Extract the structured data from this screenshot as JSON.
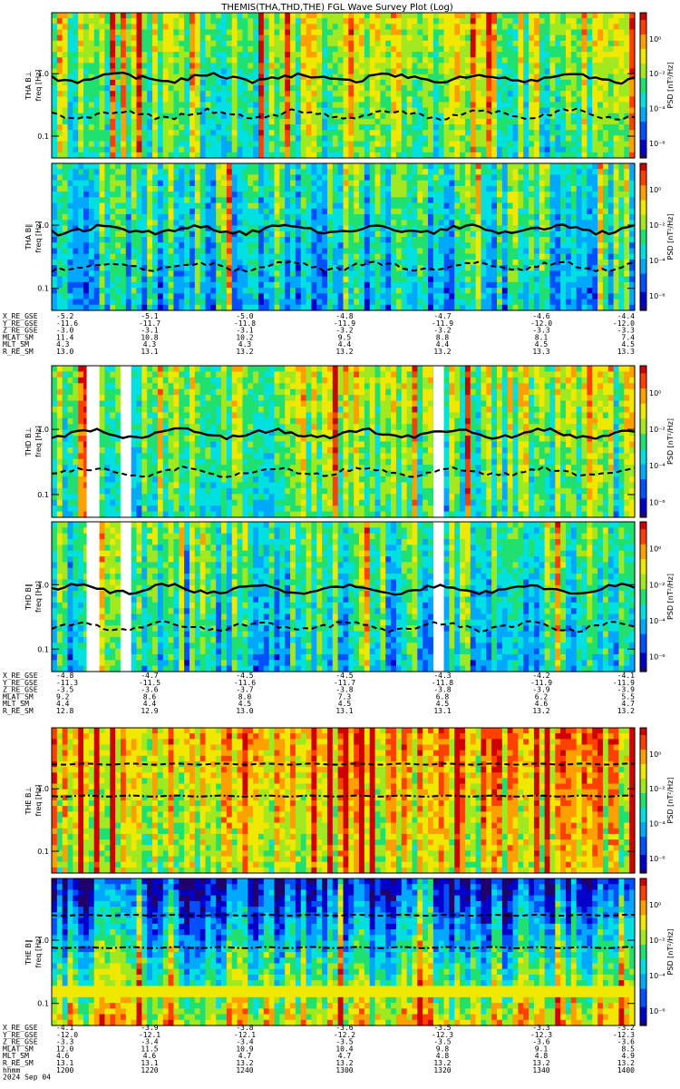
{
  "title": "THEMIS(THA,THD,THE) FGL Wave Survey Plot (Log)",
  "colors": {
    "colormap": [
      "#20006a",
      "#0000c8",
      "#0050ff",
      "#00a8ff",
      "#00e0e0",
      "#20e070",
      "#a0e820",
      "#f0e800",
      "#ffa000",
      "#ff4000",
      "#d00000"
    ]
  },
  "chart_data": {
    "type": "heatmap",
    "panels": [
      {
        "ylabel": "THA B⊥",
        "yunit": "freq [Hz]",
        "clabel": "PSD [nT²/Hz]",
        "yticks": [
          "1.0",
          "0.1"
        ],
        "cticks": [
          "10⁰",
          "10⁻²",
          "10⁻⁴",
          "10⁻⁶"
        ],
        "curves": [
          "solid",
          "dashed"
        ],
        "seed": 11,
        "base": 0.55,
        "gaps": []
      },
      {
        "ylabel": "THA B∥",
        "yunit": "freq [Hz]",
        "clabel": "PSD [nT²/Hz]",
        "yticks": [
          "1.0",
          "0.1"
        ],
        "cticks": [
          "10⁰",
          "10⁻²",
          "10⁻⁴",
          "10⁻⁶"
        ],
        "curves": [
          "solid",
          "dashed"
        ],
        "seed": 23,
        "base": 0.42,
        "gaps": []
      },
      {
        "ylabel": "THD B⊥",
        "yunit": "freq [Hz]",
        "clabel": "PSD [nT²/Hz]",
        "yticks": [
          "1.0",
          "0.1"
        ],
        "cticks": [
          "10⁰",
          "10⁻²",
          "10⁻⁴",
          "10⁻⁶"
        ],
        "curves": [
          "solid",
          "dashed"
        ],
        "seed": 37,
        "base": 0.55,
        "gaps": [
          [
            0.06,
            0.075
          ],
          [
            0.118,
            0.132
          ],
          [
            0.655,
            0.67
          ]
        ]
      },
      {
        "ylabel": "THD B∥",
        "yunit": "freq [Hz]",
        "clabel": "PSD [nT²/Hz]",
        "yticks": [
          "1.0",
          "0.1"
        ],
        "cticks": [
          "10⁰",
          "10⁻²",
          "10⁻⁴",
          "10⁻⁶"
        ],
        "curves": [
          "solid",
          "dashed"
        ],
        "seed": 41,
        "base": 0.45,
        "gaps": [
          [
            0.06,
            0.075
          ],
          [
            0.118,
            0.132
          ],
          [
            0.655,
            0.67
          ]
        ]
      },
      {
        "ylabel": "THE B⊥",
        "yunit": "freq [Hz]",
        "clabel": "PSD [nT²/Hz]",
        "yticks": [
          "1.0",
          "0.1"
        ],
        "cticks": [
          "10⁰",
          "10⁻²",
          "10⁻⁴",
          "10⁻⁶"
        ],
        "curves": [
          "dashed-flat",
          "dashdot-flat"
        ],
        "seed": 53,
        "base": 0.72,
        "gaps": []
      },
      {
        "ylabel": "THE B∥",
        "yunit": "freq [Hz]",
        "clabel": "PSD [nT²/Hz]",
        "yticks": [
          "1.0",
          "0.1"
        ],
        "cticks": [
          "10⁰",
          "10⁻²",
          "10⁻⁴",
          "10⁻⁶"
        ],
        "curves": [
          "dashed-flat",
          "dashdot-flat"
        ],
        "seed": 67,
        "base": 0.3,
        "gaps": []
      }
    ],
    "ephem_blocks": [
      {
        "labels": [
          "X_RE_GSE",
          "Y_RE_GSE",
          "Z_RE_GSE",
          "MLAT_SM",
          "MLT_SM",
          "R_RE_SM"
        ],
        "rows": [
          [
            "-5.2",
            "-5.1",
            "-5.0",
            "-4.8",
            "-4.7",
            "-4.6",
            "-4.4"
          ],
          [
            "-11.6",
            "-11.7",
            "-11.8",
            "-11.9",
            "-11.9",
            "-12.0",
            "-12.0"
          ],
          [
            "-3.0",
            "-3.1",
            "-3.1",
            "-3.2",
            "-3.2",
            "-3.3",
            "-3.3"
          ],
          [
            "11.4",
            "10.8",
            "10.2",
            "9.5",
            "8.8",
            "8.1",
            "7.4"
          ],
          [
            "4.3",
            "4.3",
            "4.3",
            "4.4",
            "4.4",
            "4.5",
            "4.5"
          ],
          [
            "13.0",
            "13.1",
            "13.2",
            "13.2",
            "13.2",
            "13.3",
            "13.3"
          ]
        ]
      },
      {
        "labels": [
          "X_RE_GSE",
          "Y_RE_GSE",
          "Z_RE_GSE",
          "MLAT_SM",
          "MLT_SM",
          "R_RE_SM"
        ],
        "rows": [
          [
            "-4.8",
            "-4.7",
            "-4.5",
            "-4.5",
            "-4.3",
            "-4.2",
            "-4.1"
          ],
          [
            "-11.3",
            "-11.5",
            "-11.6",
            "-11.7",
            "-11.8",
            "-11.9",
            "-11.9"
          ],
          [
            "-3.5",
            "-3.6",
            "-3.7",
            "-3.8",
            "-3.8",
            "-3.9",
            "-3.9"
          ],
          [
            "9.2",
            "8.6",
            "8.0",
            "7.3",
            "6.8",
            "6.2",
            "5.5"
          ],
          [
            "4.4",
            "4.4",
            "4.5",
            "4.5",
            "4.5",
            "4.6",
            "4.7"
          ],
          [
            "12.8",
            "12.9",
            "13.0",
            "13.1",
            "13.1",
            "13.2",
            "13.2"
          ]
        ]
      },
      {
        "labels": [
          "X_RE_GSE",
          "Y_RE_GSE",
          "Z_RE_GSE",
          "MLAT_SM",
          "MLT_SM",
          "R_RE_SM",
          "hhmm",
          "2024 Sep 04"
        ],
        "rows": [
          [
            "-4.1",
            "-3.9",
            "-3.8",
            "-3.6",
            "-3.5",
            "-3.3",
            "-3.2"
          ],
          [
            "-12.0",
            "-12.1",
            "-12.1",
            "-12.2",
            "-12.3",
            "-12.3",
            "-12.3"
          ],
          [
            "-3.3",
            "-3.4",
            "-3.4",
            "-3.5",
            "-3.5",
            "-3.6",
            "-3.6"
          ],
          [
            "12.0",
            "11.5",
            "10.9",
            "10.4",
            "9.8",
            "9.1",
            "8.5"
          ],
          [
            "4.6",
            "4.6",
            "4.7",
            "4.7",
            "4.8",
            "4.8",
            "4.9"
          ],
          [
            "13.1",
            "13.1",
            "13.2",
            "13.2",
            "13.2",
            "13.2",
            "13.2"
          ],
          [
            "1200",
            "1220",
            "1240",
            "1300",
            "1320",
            "1340",
            "1400"
          ]
        ]
      }
    ]
  }
}
